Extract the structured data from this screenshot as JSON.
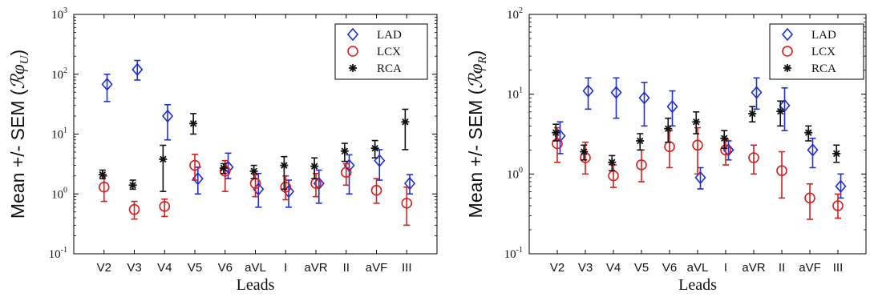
{
  "chart_data": [
    {
      "type": "scatter",
      "subtype": "errorbar",
      "yscale": "log",
      "ylim": [
        0.1,
        1000
      ],
      "y_ticks": [
        {
          "v": 0.1,
          "b": "10",
          "e": "-1"
        },
        {
          "v": 1,
          "b": "10",
          "e": "0"
        },
        {
          "v": 10,
          "b": "10",
          "e": "1"
        },
        {
          "v": 100,
          "b": "10",
          "e": "2"
        },
        {
          "v": 1000,
          "b": "10",
          "e": "3"
        }
      ],
      "categories": [
        "V2",
        "V3",
        "V4",
        "V5",
        "V6",
        "aVL",
        "I",
        "aVR",
        "II",
        "aVF",
        "III"
      ],
      "xlabel": "Leads",
      "ylabel": {
        "prefix": "Mean +/- SEM (",
        "math": "ℛφ",
        "sub": "U",
        "suffix": ")"
      },
      "legend_position": "top-right",
      "grid": false,
      "series": [
        {
          "name": "LAD",
          "color": "#1f2fd0",
          "marker": "diamond",
          "offset": 0.1,
          "values": [
            68,
            120,
            20,
            1.8,
            2.8,
            1.2,
            1.1,
            1.5,
            3.0,
            3.6,
            1.5
          ],
          "lower": [
            35,
            80,
            8,
            1.0,
            1.8,
            0.6,
            0.6,
            0.7,
            1.0,
            1.7,
            1.0
          ],
          "upper": [
            100,
            170,
            31,
            2.8,
            4.8,
            2.2,
            1.7,
            2.5,
            4.5,
            5.5,
            2.1
          ]
        },
        {
          "name": "LCX",
          "color": "#d81e1e",
          "marker": "circle",
          "offset": 0.0,
          "values": [
            1.3,
            0.55,
            0.62,
            3.0,
            2.4,
            1.5,
            1.3,
            1.5,
            2.3,
            1.15,
            0.7
          ],
          "lower": [
            0.75,
            0.38,
            0.42,
            1.7,
            1.1,
            0.9,
            0.8,
            0.9,
            1.4,
            0.7,
            0.3
          ],
          "upper": [
            2.0,
            0.75,
            0.82,
            4.6,
            3.6,
            2.1,
            2.0,
            2.2,
            3.2,
            1.8,
            1.3
          ]
        },
        {
          "name": "RCA",
          "color": "#111111",
          "marker": "star",
          "offset": -0.05,
          "values": [
            2.1,
            1.4,
            3.8,
            15,
            2.7,
            2.4,
            3.0,
            2.9,
            5.2,
            5.8,
            16
          ],
          "lower": [
            1.8,
            1.2,
            1.1,
            10,
            2.2,
            1.8,
            1.2,
            1.8,
            3.5,
            4.0,
            5.5
          ],
          "upper": [
            2.5,
            1.7,
            6.5,
            22,
            3.2,
            3.0,
            4.2,
            4.0,
            7.0,
            7.8,
            26
          ]
        }
      ]
    },
    {
      "type": "scatter",
      "subtype": "errorbar",
      "yscale": "log",
      "ylim": [
        0.1,
        100
      ],
      "y_ticks": [
        {
          "v": 0.1,
          "b": "10",
          "e": "-1"
        },
        {
          "v": 1,
          "b": "10",
          "e": "0"
        },
        {
          "v": 10,
          "b": "10",
          "e": "1"
        },
        {
          "v": 100,
          "b": "10",
          "e": "2"
        }
      ],
      "categories": [
        "V2",
        "V3",
        "V4",
        "V5",
        "V6",
        "aVL",
        "I",
        "aVR",
        "II",
        "aVF",
        "III"
      ],
      "xlabel": "Leads",
      "ylabel": {
        "prefix": "Mean +/- SEM (",
        "math": "ℛφ",
        "sub": "R",
        "suffix": ")"
      },
      "legend_position": "top-right",
      "grid": false,
      "series": [
        {
          "name": "LAD",
          "color": "#1f2fd0",
          "marker": "diamond",
          "offset": 0.1,
          "values": [
            3.0,
            11,
            10.5,
            9,
            7,
            0.9,
            2.0,
            10.5,
            7.2,
            2.0,
            0.7
          ],
          "lower": [
            1.8,
            6.5,
            5.0,
            4.0,
            4.0,
            0.65,
            1.5,
            6.5,
            3.5,
            1.2,
            0.5
          ],
          "upper": [
            4.5,
            16,
            16,
            14,
            11,
            1.2,
            2.6,
            16,
            12,
            2.8,
            1.0
          ]
        },
        {
          "name": "LCX",
          "color": "#d81e1e",
          "marker": "circle",
          "offset": 0.0,
          "values": [
            2.4,
            1.6,
            0.95,
            1.3,
            2.2,
            2.3,
            2.0,
            1.6,
            1.1,
            0.5,
            0.4
          ],
          "lower": [
            1.4,
            1.0,
            0.68,
            0.8,
            1.2,
            1.0,
            1.3,
            1.0,
            0.5,
            0.27,
            0.28
          ],
          "upper": [
            3.8,
            2.5,
            1.3,
            2.0,
            3.5,
            3.8,
            2.7,
            2.3,
            1.9,
            0.75,
            0.56
          ]
        },
        {
          "name": "RCA",
          "color": "#111111",
          "marker": "star",
          "offset": -0.05,
          "values": [
            3.3,
            1.9,
            1.4,
            2.6,
            3.7,
            4.5,
            2.8,
            5.7,
            6.1,
            3.3,
            1.8
          ],
          "lower": [
            2.6,
            1.5,
            1.1,
            2.0,
            2.5,
            3.2,
            2.1,
            4.5,
            4.0,
            2.6,
            1.4
          ],
          "upper": [
            4.2,
            2.3,
            1.7,
            3.2,
            5.0,
            6.0,
            3.5,
            7.0,
            8.2,
            4.0,
            2.3
          ]
        }
      ]
    }
  ]
}
